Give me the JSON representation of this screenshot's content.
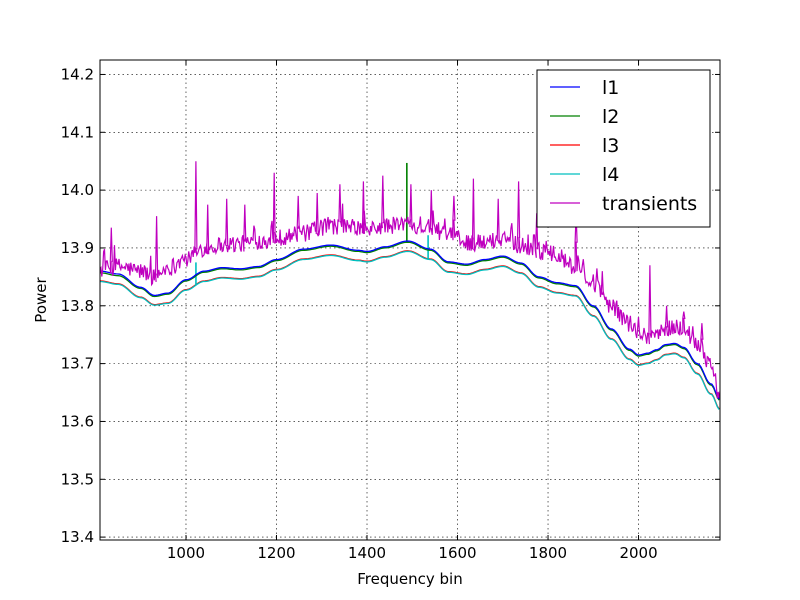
{
  "chart_data": {
    "type": "line",
    "title": "",
    "xlabel": "Frequency bin",
    "ylabel": "Power",
    "xlim": [
      810,
      2180
    ],
    "ylim": [
      13.395,
      14.225
    ],
    "grid": true,
    "legend_placement": "top-right",
    "x_ticks": [
      1000,
      1200,
      1400,
      1600,
      1800,
      2000
    ],
    "y_ticks": [
      13.4,
      13.5,
      13.6,
      13.7,
      13.8,
      13.9,
      14.0,
      14.1,
      14.2
    ],
    "x_tick_labels": [
      "1000",
      "1200",
      "1400",
      "1600",
      "1800",
      "2000"
    ],
    "y_tick_labels": [
      "13.4",
      "13.5",
      "13.6",
      "13.7",
      "13.8",
      "13.9",
      "14.0",
      "14.1",
      "14.2"
    ],
    "x": [
      810,
      850,
      900,
      930,
      960,
      1000,
      1040,
      1080,
      1120,
      1160,
      1200,
      1260,
      1320,
      1380,
      1400,
      1440,
      1490,
      1540,
      1580,
      1620,
      1660,
      1700,
      1740,
      1780,
      1820,
      1860,
      1900,
      1940,
      1980,
      2000,
      2020,
      2040,
      2060,
      2080,
      2100,
      2130,
      2160,
      2180
    ],
    "series": [
      {
        "name": "l1",
        "color": "#0000ff",
        "values": [
          13.86,
          13.855,
          13.832,
          13.818,
          13.822,
          13.845,
          13.86,
          13.866,
          13.864,
          13.868,
          13.88,
          13.898,
          13.905,
          13.896,
          13.894,
          13.902,
          13.912,
          13.898,
          13.876,
          13.872,
          13.88,
          13.886,
          13.874,
          13.85,
          13.84,
          13.835,
          13.8,
          13.76,
          13.725,
          13.715,
          13.718,
          13.724,
          13.733,
          13.735,
          13.728,
          13.7,
          13.665,
          13.638
        ]
      },
      {
        "name": "l2",
        "color": "#008000",
        "values": [
          13.857,
          13.852,
          13.83,
          13.816,
          13.82,
          13.843,
          13.858,
          13.864,
          13.862,
          13.866,
          13.878,
          13.896,
          13.903,
          13.894,
          13.892,
          13.9,
          13.91,
          13.896,
          13.874,
          13.87,
          13.878,
          13.884,
          13.872,
          13.848,
          13.838,
          13.833,
          13.798,
          13.758,
          13.723,
          13.713,
          13.716,
          13.722,
          13.731,
          13.733,
          13.726,
          13.698,
          13.663,
          13.636
        ]
      },
      {
        "name": "l3",
        "color": "#ff0000",
        "values": [
          13.843,
          13.838,
          13.815,
          13.802,
          13.805,
          13.828,
          13.843,
          13.849,
          13.847,
          13.851,
          13.863,
          13.881,
          13.888,
          13.879,
          13.877,
          13.885,
          13.895,
          13.881,
          13.859,
          13.855,
          13.863,
          13.869,
          13.857,
          13.833,
          13.823,
          13.818,
          13.783,
          13.743,
          13.708,
          13.698,
          13.701,
          13.707,
          13.716,
          13.718,
          13.711,
          13.683,
          13.648,
          13.621
        ]
      },
      {
        "name": "l4",
        "color": "#00bfbf",
        "values": [
          13.842,
          13.837,
          13.814,
          13.801,
          13.804,
          13.827,
          13.842,
          13.848,
          13.846,
          13.85,
          13.862,
          13.88,
          13.887,
          13.878,
          13.876,
          13.884,
          13.894,
          13.88,
          13.858,
          13.854,
          13.862,
          13.868,
          13.856,
          13.832,
          13.822,
          13.817,
          13.782,
          13.742,
          13.707,
          13.697,
          13.7,
          13.706,
          13.715,
          13.717,
          13.71,
          13.682,
          13.647,
          13.62
        ]
      },
      {
        "name": "transients",
        "color": "#bf00bf",
        "values": [
          13.862,
          13.868,
          13.86,
          13.85,
          13.866,
          13.88,
          13.9,
          13.906,
          13.907,
          13.912,
          13.918,
          13.925,
          13.938,
          13.935,
          13.93,
          13.938,
          13.942,
          13.935,
          13.922,
          13.91,
          13.908,
          13.918,
          13.905,
          13.895,
          13.885,
          13.868,
          13.835,
          13.8,
          13.77,
          13.752,
          13.748,
          13.752,
          13.758,
          13.765,
          13.76,
          13.735,
          13.7,
          13.64
        ]
      }
    ],
    "spikes": [
      {
        "series": "transients",
        "x": 835,
        "value": 13.935
      },
      {
        "series": "transients",
        "x": 935,
        "value": 13.955
      },
      {
        "series": "transients",
        "x": 1022,
        "value": 14.05
      },
      {
        "series": "transients",
        "x": 1048,
        "value": 13.975
      },
      {
        "series": "transients",
        "x": 1090,
        "value": 13.985
      },
      {
        "series": "transients",
        "x": 1130,
        "value": 13.975
      },
      {
        "series": "transients",
        "x": 1195,
        "value": 14.03
      },
      {
        "series": "transients",
        "x": 1248,
        "value": 13.99
      },
      {
        "series": "transients",
        "x": 1290,
        "value": 13.995
      },
      {
        "series": "transients",
        "x": 1340,
        "value": 14.01
      },
      {
        "series": "transients",
        "x": 1392,
        "value": 14.015
      },
      {
        "series": "transients",
        "x": 1435,
        "value": 14.025
      },
      {
        "series": "transients",
        "x": 1497,
        "value": 14.01
      },
      {
        "series": "transients",
        "x": 1542,
        "value": 14.0
      },
      {
        "series": "transients",
        "x": 1592,
        "value": 13.99
      },
      {
        "series": "transients",
        "x": 1635,
        "value": 14.02
      },
      {
        "series": "transients",
        "x": 1690,
        "value": 13.985
      },
      {
        "series": "transients",
        "x": 1735,
        "value": 14.015
      },
      {
        "series": "transients",
        "x": 1775,
        "value": 13.96
      },
      {
        "series": "transients",
        "x": 1862,
        "value": 13.96
      },
      {
        "series": "transients",
        "x": 1920,
        "value": 13.86
      },
      {
        "series": "transients",
        "x": 2025,
        "value": 13.87
      },
      {
        "series": "transients",
        "x": 2062,
        "value": 13.8
      },
      {
        "series": "transients",
        "x": 2100,
        "value": 13.79
      },
      {
        "series": "transients",
        "x": 2140,
        "value": 13.77
      },
      {
        "series": "l2",
        "x": 1488,
        "value": 14.047
      },
      {
        "series": "l4",
        "x": 1535,
        "value": 13.922
      },
      {
        "series": "l4",
        "x": 1022,
        "value": 13.875
      }
    ]
  }
}
